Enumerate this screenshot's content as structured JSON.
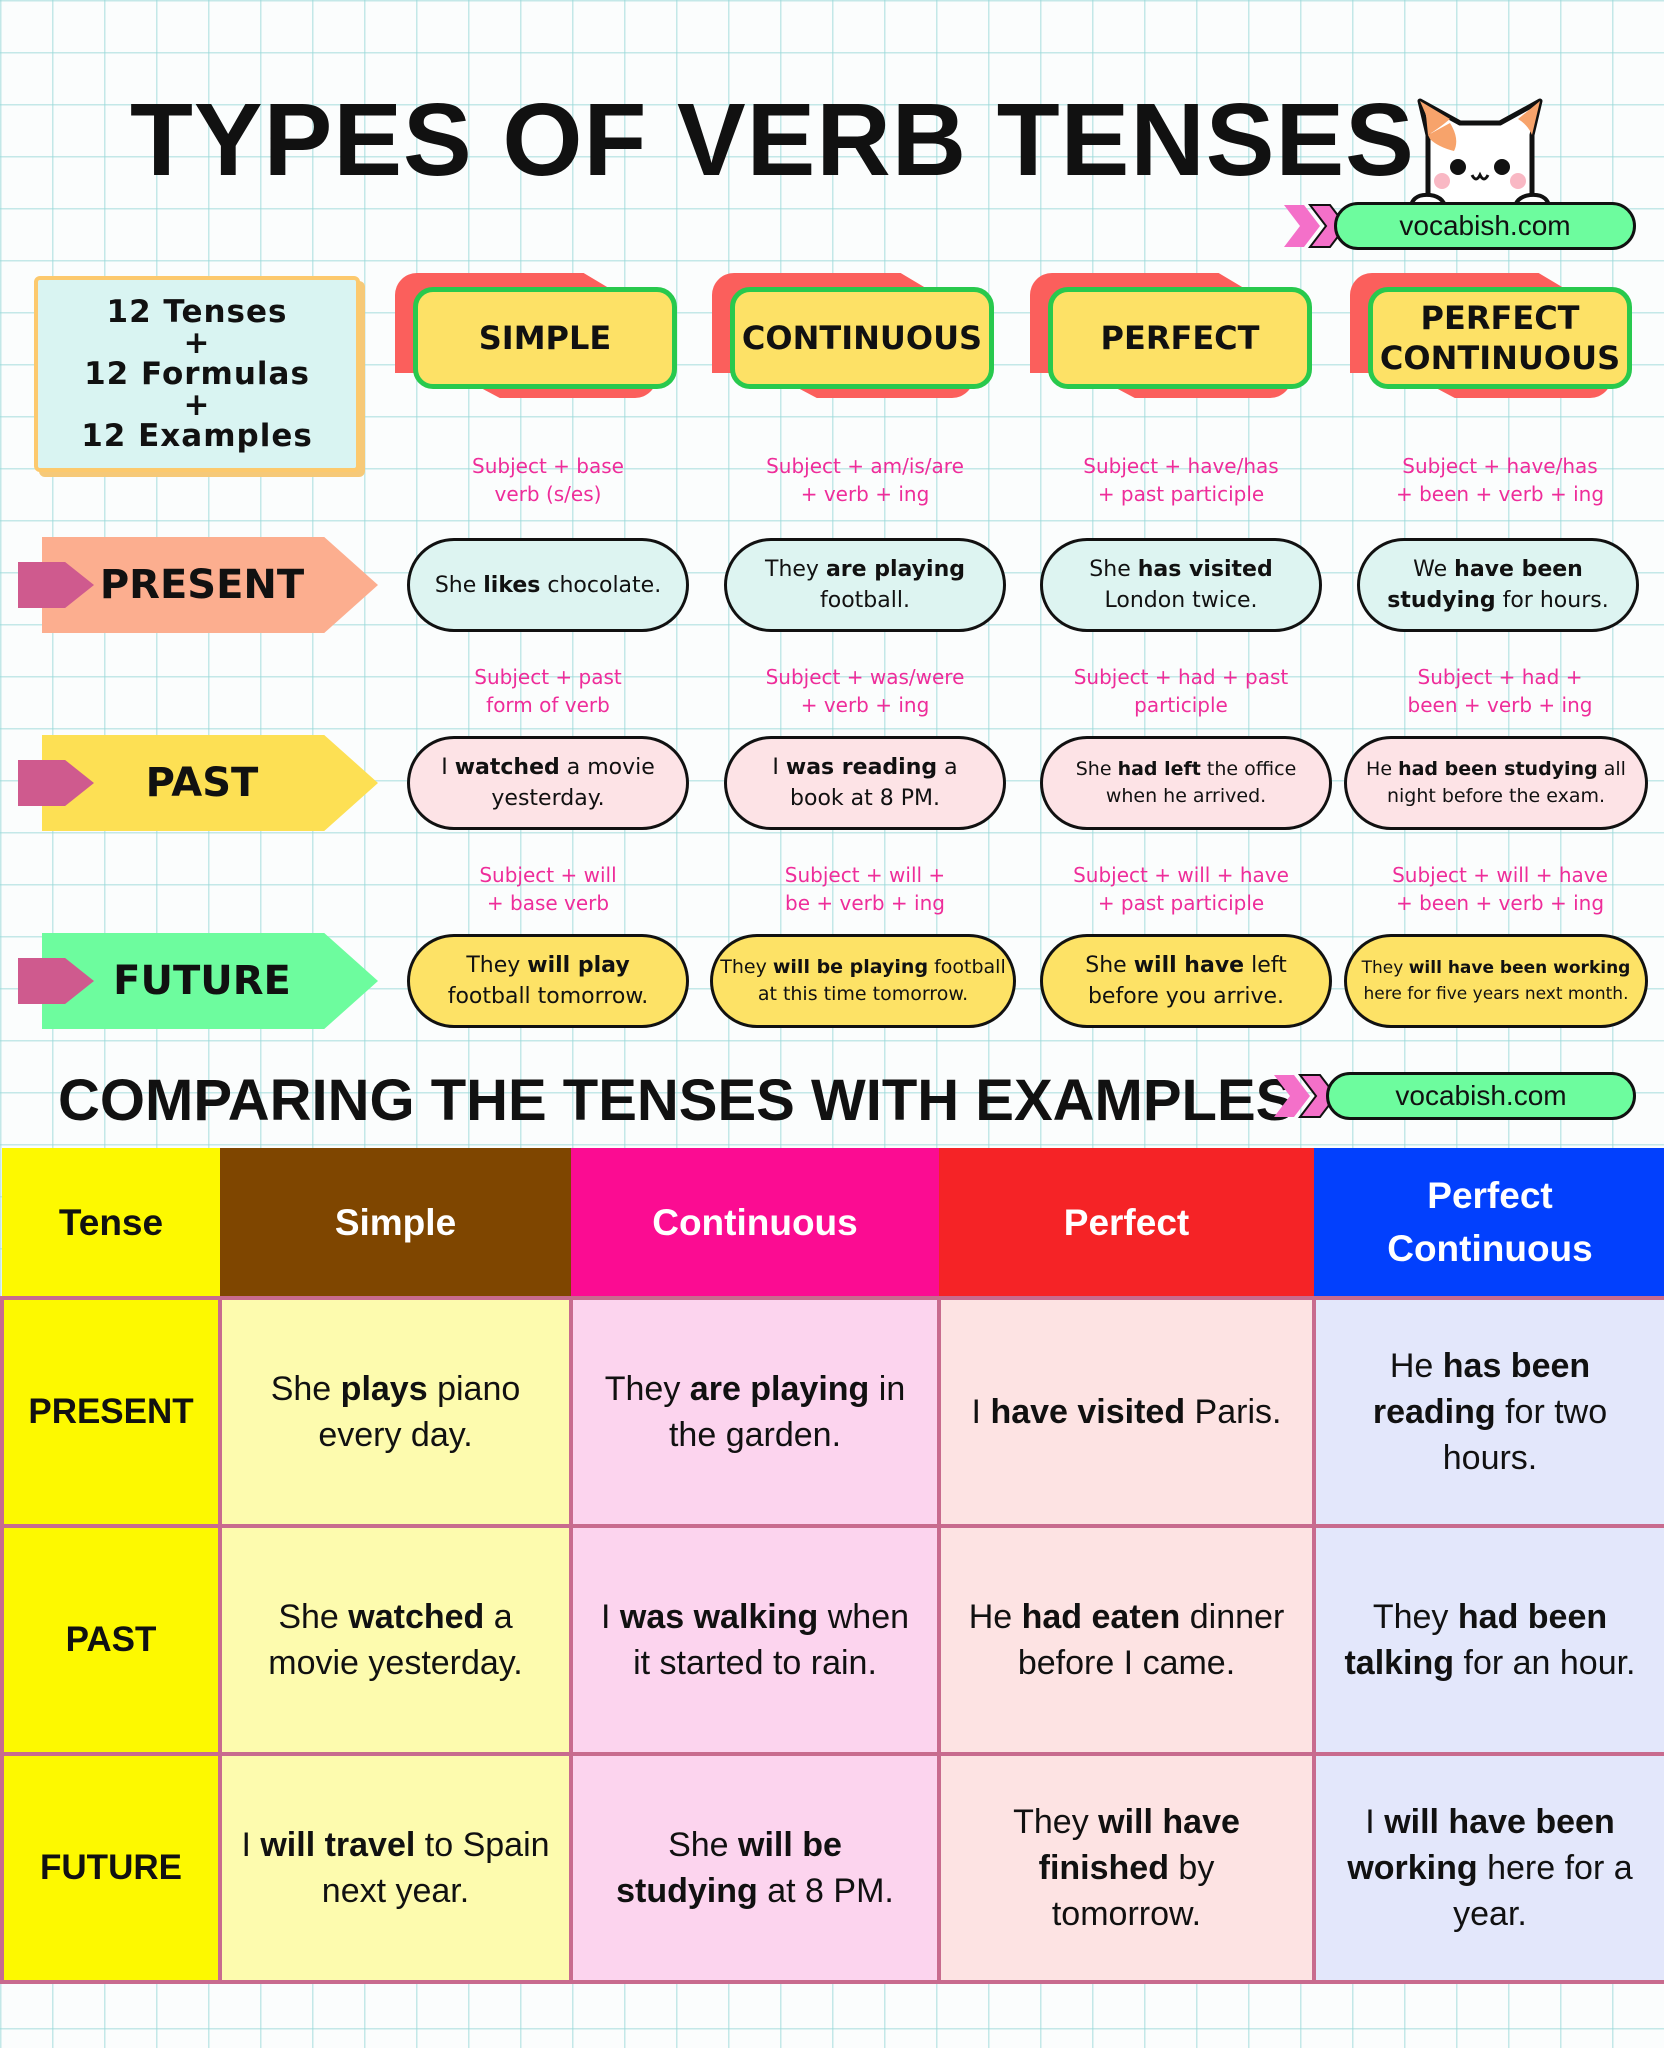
{
  "title": "TYPES OF VERB TENSES",
  "site": "vocabish.com",
  "intro": {
    "line1": "12 Tenses",
    "plus": "+",
    "line2": "12 Formulas",
    "line3": "12 Examples"
  },
  "aspects": [
    "SIMPLE",
    "CONTINUOUS",
    "PERFECT",
    "PERFECT CONTINUOUS"
  ],
  "rows": [
    {
      "label": "PRESENT",
      "formulas": [
        [
          "Subject + base",
          "verb (s/es)"
        ],
        [
          "Subject + am/is/are",
          "+ verb + ing"
        ],
        [
          "Subject + have/has",
          "+ past participle"
        ],
        [
          "Subject + have/has",
          "+ been + verb + ing"
        ]
      ],
      "examples": [
        [
          "She ",
          "likes",
          " chocolate."
        ],
        [
          "They ",
          "are playing",
          " football."
        ],
        [
          "She ",
          "has visited",
          " London twice."
        ],
        [
          "We ",
          "have been studying",
          " for hours."
        ]
      ]
    },
    {
      "label": "PAST",
      "formulas": [
        [
          "Subject + past",
          "form of verb"
        ],
        [
          "Subject + was/were",
          "+ verb + ing"
        ],
        [
          "Subject + had + past",
          "participle"
        ],
        [
          "Subject + had +",
          "been + verb + ing"
        ]
      ],
      "examples": [
        [
          "I ",
          "watched",
          " a movie yesterday."
        ],
        [
          "I ",
          "was reading",
          " a book at 8 PM."
        ],
        [
          "She ",
          "had left",
          " the office when he arrived."
        ],
        [
          "He ",
          "had been studying",
          " all night before the exam."
        ]
      ]
    },
    {
      "label": "FUTURE",
      "formulas": [
        [
          "Subject + will",
          "+ base verb"
        ],
        [
          "Subject + will +",
          "be + verb + ing"
        ],
        [
          "Subject + will + have",
          "+ past participle"
        ],
        [
          "Subject + will + have",
          "+ been + verb + ing"
        ]
      ],
      "examples": [
        [
          "They ",
          "will play",
          " football tomorrow."
        ],
        [
          "They ",
          "will be playing",
          " football at this time tomorrow."
        ],
        [
          "She ",
          "will have",
          " left before you arrive."
        ],
        [
          "They ",
          "will have been working",
          " here for five years next month."
        ]
      ]
    }
  ],
  "comparison": {
    "title": "COMPARING THE TENSES WITH EXAMPLES",
    "headers": [
      "Tense",
      "Simple",
      "Continuous",
      "Perfect",
      "Perfect Continuous"
    ],
    "rows": [
      {
        "label": "PRESENT",
        "cells": [
          [
            "She ",
            "plays",
            " piano every day."
          ],
          [
            "They ",
            "are playing",
            " in the garden."
          ],
          [
            "I ",
            "have visited",
            " Paris."
          ],
          [
            "He ",
            "has been reading",
            " for two hours."
          ]
        ]
      },
      {
        "label": "PAST",
        "cells": [
          [
            "She ",
            "watched",
            " a movie yesterday."
          ],
          [
            "I ",
            "was walking",
            " when it started to rain."
          ],
          [
            "He ",
            "had eaten",
            " dinner before I came."
          ],
          [
            "They ",
            "had been talking",
            " for an hour."
          ]
        ]
      },
      {
        "label": "FUTURE",
        "cells": [
          [
            "I ",
            "will travel",
            " to Spain next year."
          ],
          [
            "She ",
            "will be studying",
            " at 8 PM."
          ],
          [
            "They ",
            "will have finished",
            " by tomorrow."
          ],
          [
            "I ",
            "will have been working",
            " here for a year."
          ]
        ]
      }
    ]
  },
  "colors": {
    "th_tense": "#fdf900",
    "th_simple": "#7f4600",
    "th_continuous": "#fb0c92",
    "th_perfect": "#f52326",
    "th_perfect_continuous": "#0240fd",
    "present_tag": "#fcae8f",
    "past_tag": "#fde054",
    "future_tag": "#6dfc9e"
  }
}
